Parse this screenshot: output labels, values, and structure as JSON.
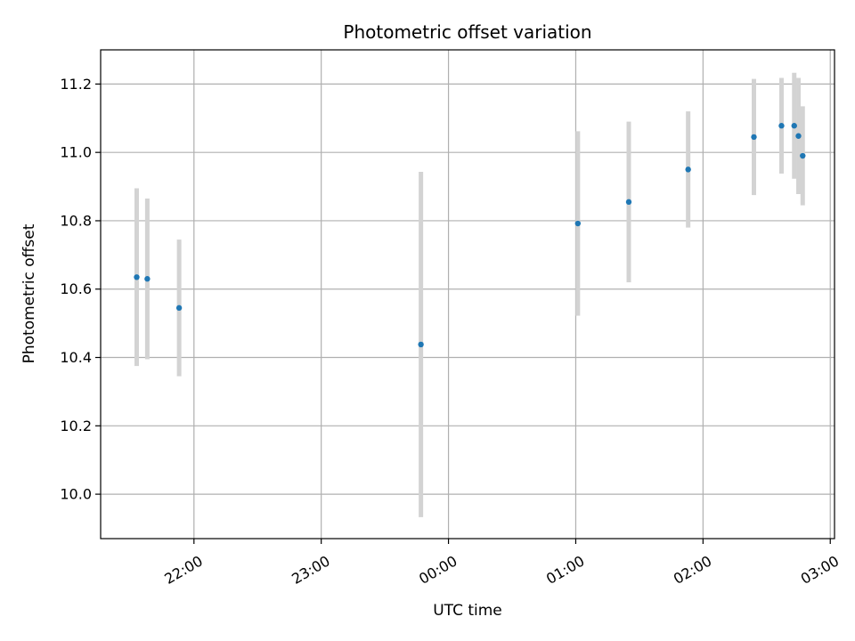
{
  "chart_data": {
    "type": "scatter",
    "title": "Photometric offset variation",
    "xlabel": "UTC time",
    "ylabel": "Photometric offset",
    "x_ticks": [
      "22:00",
      "23:00",
      "00:00",
      "01:00",
      "02:00",
      "03:00"
    ],
    "y_ticks": [
      "10.0",
      "10.2",
      "10.4",
      "10.6",
      "10.8",
      "11.0",
      "11.2"
    ],
    "xlim": [
      "21:16",
      "03:02"
    ],
    "ylim": [
      9.87,
      11.3
    ],
    "grid": true,
    "colors": {
      "marker": "#1f77b4",
      "errorbar": "#d3d3d3",
      "grid": "#b0b0b0"
    },
    "points": [
      {
        "time": "21:33",
        "y": 10.635,
        "yerr": 0.26
      },
      {
        "time": "21:38",
        "y": 10.63,
        "yerr": 0.235
      },
      {
        "time": "21:53",
        "y": 10.545,
        "yerr": 0.2
      },
      {
        "time": "23:47",
        "y": 10.438,
        "yerr": 0.505
      },
      {
        "time": "01:01",
        "y": 10.792,
        "yerr": 0.27
      },
      {
        "time": "01:25",
        "y": 10.855,
        "yerr": 0.235
      },
      {
        "time": "01:53",
        "y": 10.95,
        "yerr": 0.17
      },
      {
        "time": "02:24",
        "y": 11.045,
        "yerr": 0.17
      },
      {
        "time": "02:37",
        "y": 11.078,
        "yerr": 0.14
      },
      {
        "time": "02:43",
        "y": 11.078,
        "yerr": 0.155
      },
      {
        "time": "02:45",
        "y": 11.048,
        "yerr": 0.17
      },
      {
        "time": "02:47",
        "y": 10.99,
        "yerr": 0.145
      }
    ]
  }
}
